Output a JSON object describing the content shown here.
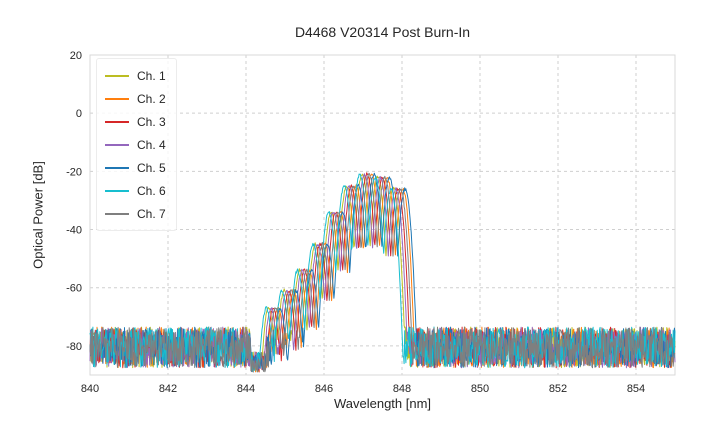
{
  "chart_data": {
    "type": "line",
    "title": "D4468 V20314 Post Burn-In",
    "xlabel": "Wavelength [nm]",
    "ylabel": "Optical Power [dB]",
    "xlim": [
      840,
      855
    ],
    "ylim": [
      -90,
      20
    ],
    "xticks": [
      840,
      842,
      844,
      846,
      848,
      850,
      852,
      854
    ],
    "yticks": [
      -80,
      -60,
      -40,
      -20,
      0,
      20
    ],
    "grid": true,
    "legend_position": "upper-left",
    "noise_floor_db": -80,
    "noise_band_db": [
      -73.5,
      -87.5
    ],
    "notch": {
      "range_nm": [
        844.12,
        844.52
      ],
      "band_db": [
        -82,
        -89
      ]
    },
    "lobe_offsets_nm": [
      -2.4,
      -2.0,
      -1.6,
      -1.2,
      -0.8,
      -0.4,
      0.0,
      0.4,
      0.8
    ],
    "lobe_peaks_db": [
      -67,
      -61,
      -54,
      -45,
      -34,
      -25,
      -21,
      -22,
      -26
    ],
    "lobe_width_nm": 0.04,
    "sample_step_nm": 0.015,
    "series": [
      {
        "name": "Ch. 1",
        "color": "#bcbd22",
        "center_nm": 846.98,
        "seed": 11
      },
      {
        "name": "Ch. 2",
        "color": "#ff7f0e",
        "center_nm": 847.22,
        "seed": 22
      },
      {
        "name": "Ch. 3",
        "color": "#d62728",
        "center_nm": 847.1,
        "seed": 33
      },
      {
        "name": "Ch. 4",
        "color": "#9467bd",
        "center_nm": 847.04,
        "seed": 44
      },
      {
        "name": "Ch. 5",
        "color": "#1f77b4",
        "center_nm": 847.28,
        "seed": 55
      },
      {
        "name": "Ch. 6",
        "color": "#17becf",
        "center_nm": 846.92,
        "seed": 66
      },
      {
        "name": "Ch. 7",
        "color": "#7f7f7f",
        "center_nm": 847.16,
        "seed": 77
      }
    ],
    "grid_color": "#cfcfcf",
    "spine_color": "#d9d9d9",
    "text_color": "#262626"
  }
}
